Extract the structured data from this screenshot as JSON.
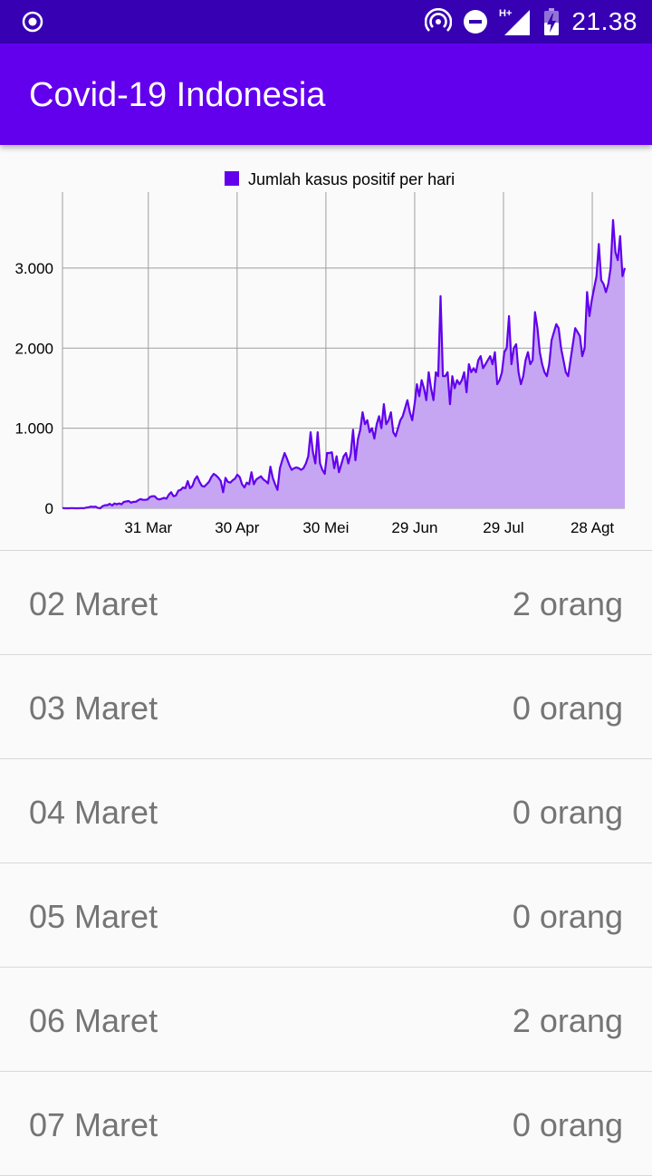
{
  "status_bar": {
    "time": "21.38",
    "icons": [
      "target-icon",
      "hotspot-icon",
      "do-not-disturb-icon",
      "signal-hplus-icon",
      "battery-charging-icon"
    ],
    "network_label": "H+"
  },
  "app_bar": {
    "title": "Covid-19 Indonesia"
  },
  "colors": {
    "primary": "#6200ee",
    "primary_dark": "#3700b3",
    "line": "#6200ee",
    "fill": "#c6a5f3"
  },
  "chart_data": {
    "type": "area",
    "legend": {
      "label": "Jumlah kasus positif per hari",
      "position": "top-center"
    },
    "x_ticks": [
      "31 Mar",
      "30 Apr",
      "30 Mei",
      "29 Jun",
      "29 Jul",
      "28 Agt"
    ],
    "x_tick_days": [
      29,
      59,
      89,
      119,
      149,
      179
    ],
    "y_ticks": [
      "0",
      "1.000",
      "2.000",
      "3.000"
    ],
    "y_tick_values": [
      0,
      1000,
      2000,
      3000
    ],
    "xlim_days": [
      0,
      190
    ],
    "ylim": [
      0,
      3950
    ],
    "grid": true,
    "series": [
      {
        "name": "Jumlah kasus positif per hari",
        "values": [
          2,
          0,
          0,
          0,
          2,
          0,
          0,
          0,
          2,
          0,
          8,
          13,
          20,
          17,
          20,
          5,
          0,
          27,
          38,
          40,
          55,
          35,
          60,
          50,
          60,
          50,
          80,
          85,
          90,
          70,
          80,
          80,
          100,
          115,
          105,
          105,
          110,
          140,
          150,
          150,
          120,
          110,
          120,
          130,
          120,
          170,
          200,
          150,
          160,
          220,
          230,
          260,
          250,
          340,
          250,
          280,
          360,
          400,
          330,
          280,
          270,
          300,
          330,
          390,
          430,
          410,
          380,
          340,
          200,
          380,
          330,
          320,
          350,
          370,
          420,
          390,
          300,
          260,
          320,
          300,
          450,
          300,
          360,
          380,
          400,
          360,
          340,
          310,
          520,
          380,
          300,
          230,
          500,
          600,
          690,
          620,
          540,
          480,
          500,
          510,
          500,
          480,
          500,
          560,
          650,
          950,
          700,
          560,
          950,
          560,
          480,
          430,
          690,
          690,
          700,
          500,
          650,
          450,
          550,
          650,
          690,
          560,
          680,
          980,
          600,
          860,
          980,
          1200,
          1050,
          1100,
          950,
          1000,
          870,
          1050,
          1150,
          1000,
          1300,
          1050,
          1100,
          1200,
          950,
          900,
          1000,
          1100,
          1150,
          1250,
          1350,
          1200,
          1100,
          1300,
          1550,
          1400,
          1600,
          1500,
          1350,
          1700,
          1500,
          1350,
          1700,
          1650,
          2650,
          1650,
          1650,
          1700,
          1300,
          1650,
          1500,
          1600,
          1550,
          1600,
          1700,
          1450,
          1800,
          1700,
          1750,
          1700,
          1850,
          1900,
          1750,
          1800,
          1850,
          1900,
          1800,
          1950,
          1550,
          1600,
          1700,
          1950,
          2000,
          2400,
          1800,
          2000,
          2050,
          1700,
          1550,
          1650,
          1850,
          1950,
          1800,
          1850,
          2450,
          2250,
          1950,
          1800,
          1700,
          1650,
          1800,
          2100,
          2200,
          2300,
          2250,
          2000,
          1850,
          1700,
          1650,
          1850,
          2050,
          2250,
          2200,
          2150,
          1900,
          2000,
          2700,
          2400,
          2600,
          2750,
          2900,
          3300,
          2850,
          2800,
          2700,
          2800,
          3000,
          3600,
          3200,
          3100,
          3400,
          2900,
          3000
        ]
      }
    ]
  },
  "list": {
    "items": [
      {
        "date": "02 Maret",
        "count": "2 orang"
      },
      {
        "date": "03 Maret",
        "count": "0 orang"
      },
      {
        "date": "04 Maret",
        "count": "0 orang"
      },
      {
        "date": "05 Maret",
        "count": "0 orang"
      },
      {
        "date": "06 Maret",
        "count": "2 orang"
      },
      {
        "date": "07 Maret",
        "count": "0 orang"
      }
    ]
  }
}
